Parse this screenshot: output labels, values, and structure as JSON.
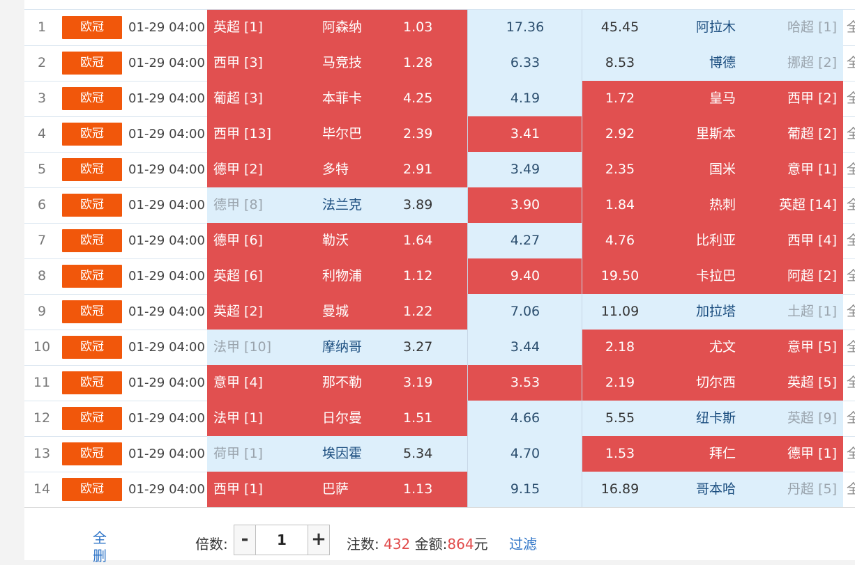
{
  "badge_label": "欧冠",
  "colors": {
    "badge": "#f1570b",
    "hot": "#e15050",
    "cold": "#ddeffb",
    "link": "#2c73c7"
  },
  "rows": [
    {
      "no": "1",
      "time": "01-29 04:00",
      "home_league": "英超 [1]",
      "home": "阿森纳",
      "home_odd": "1.03",
      "draw_odd": "17.36",
      "away_odd": "45.45",
      "away": "阿拉木",
      "away_league": "哈超 [1]",
      "hl": [
        "red",
        "blue",
        "blue"
      ]
    },
    {
      "no": "2",
      "time": "01-29 04:00",
      "home_league": "西甲 [3]",
      "home": "马竞技",
      "home_odd": "1.28",
      "draw_odd": "6.33",
      "away_odd": "8.53",
      "away": "博德",
      "away_league": "挪超 [2]",
      "hl": [
        "red",
        "blue",
        "blue"
      ]
    },
    {
      "no": "3",
      "time": "01-29 04:00",
      "home_league": "葡超 [3]",
      "home": "本菲卡",
      "home_odd": "4.25",
      "draw_odd": "4.19",
      "away_odd": "1.72",
      "away": "皇马",
      "away_league": "西甲 [2]",
      "hl": [
        "red",
        "blue",
        "red"
      ]
    },
    {
      "no": "4",
      "time": "01-29 04:00",
      "home_league": "西甲 [13]",
      "home": "毕尔巴",
      "home_odd": "2.39",
      "draw_odd": "3.41",
      "away_odd": "2.92",
      "away": "里斯本",
      "away_league": "葡超 [2]",
      "hl": [
        "red",
        "red",
        "red"
      ]
    },
    {
      "no": "5",
      "time": "01-29 04:00",
      "home_league": "德甲 [2]",
      "home": "多特",
      "home_odd": "2.91",
      "draw_odd": "3.49",
      "away_odd": "2.35",
      "away": "国米",
      "away_league": "意甲 [1]",
      "hl": [
        "red",
        "blue",
        "red"
      ]
    },
    {
      "no": "6",
      "time": "01-29 04:00",
      "home_league": "德甲 [8]",
      "home": "法兰克",
      "home_odd": "3.89",
      "draw_odd": "3.90",
      "away_odd": "1.84",
      "away": "热刺",
      "away_league": "英超 [14]",
      "hl": [
        "blue",
        "red",
        "red"
      ]
    },
    {
      "no": "7",
      "time": "01-29 04:00",
      "home_league": "德甲 [6]",
      "home": "勒沃",
      "home_odd": "1.64",
      "draw_odd": "4.27",
      "away_odd": "4.76",
      "away": "比利亚",
      "away_league": "西甲 [4]",
      "hl": [
        "red",
        "blue",
        "red"
      ]
    },
    {
      "no": "8",
      "time": "01-29 04:00",
      "home_league": "英超 [6]",
      "home": "利物浦",
      "home_odd": "1.12",
      "draw_odd": "9.40",
      "away_odd": "19.50",
      "away": "卡拉巴",
      "away_league": "阿超 [2]",
      "hl": [
        "red",
        "red",
        "red"
      ]
    },
    {
      "no": "9",
      "time": "01-29 04:00",
      "home_league": "英超 [2]",
      "home": "曼城",
      "home_odd": "1.22",
      "draw_odd": "7.06",
      "away_odd": "11.09",
      "away": "加拉塔",
      "away_league": "土超 [1]",
      "hl": [
        "red",
        "blue",
        "blue"
      ]
    },
    {
      "no": "10",
      "time": "01-29 04:00",
      "home_league": "法甲 [10]",
      "home": "摩纳哥",
      "home_odd": "3.27",
      "draw_odd": "3.44",
      "away_odd": "2.18",
      "away": "尤文",
      "away_league": "意甲 [5]",
      "hl": [
        "blue",
        "blue",
        "red"
      ]
    },
    {
      "no": "11",
      "time": "01-29 04:00",
      "home_league": "意甲 [4]",
      "home": "那不勒",
      "home_odd": "3.19",
      "draw_odd": "3.53",
      "away_odd": "2.19",
      "away": "切尔西",
      "away_league": "英超 [5]",
      "hl": [
        "red",
        "red",
        "red"
      ]
    },
    {
      "no": "12",
      "time": "01-29 04:00",
      "home_league": "法甲 [1]",
      "home": "日尔曼",
      "home_odd": "1.51",
      "draw_odd": "4.66",
      "away_odd": "5.55",
      "away": "纽卡斯",
      "away_league": "英超 [9]",
      "hl": [
        "red",
        "blue",
        "blue"
      ]
    },
    {
      "no": "13",
      "time": "01-29 04:00",
      "home_league": "荷甲 [1]",
      "home": "埃因霍",
      "home_odd": "5.34",
      "draw_odd": "4.70",
      "away_odd": "1.53",
      "away": "拜仁",
      "away_league": "德甲 [1]",
      "hl": [
        "blue",
        "blue",
        "red"
      ]
    },
    {
      "no": "14",
      "time": "01-29 04:00",
      "home_league": "西甲 [1]",
      "home": "巴萨",
      "home_odd": "1.13",
      "draw_odd": "9.15",
      "away_odd": "16.89",
      "away": "哥本哈",
      "away_league": "丹超 [5]",
      "hl": [
        "red",
        "blue",
        "blue"
      ]
    }
  ],
  "more_glyph": "全",
  "footer": {
    "delete_all": "全删",
    "multiplier_label": "倍数:",
    "minus": "-",
    "plus": "+",
    "multiplier_value": "1",
    "bets_label": "注数:",
    "bets_value": "432",
    "amount_label": "金额:",
    "amount_value": "864",
    "amount_unit": "元",
    "filter_label": "过滤"
  }
}
